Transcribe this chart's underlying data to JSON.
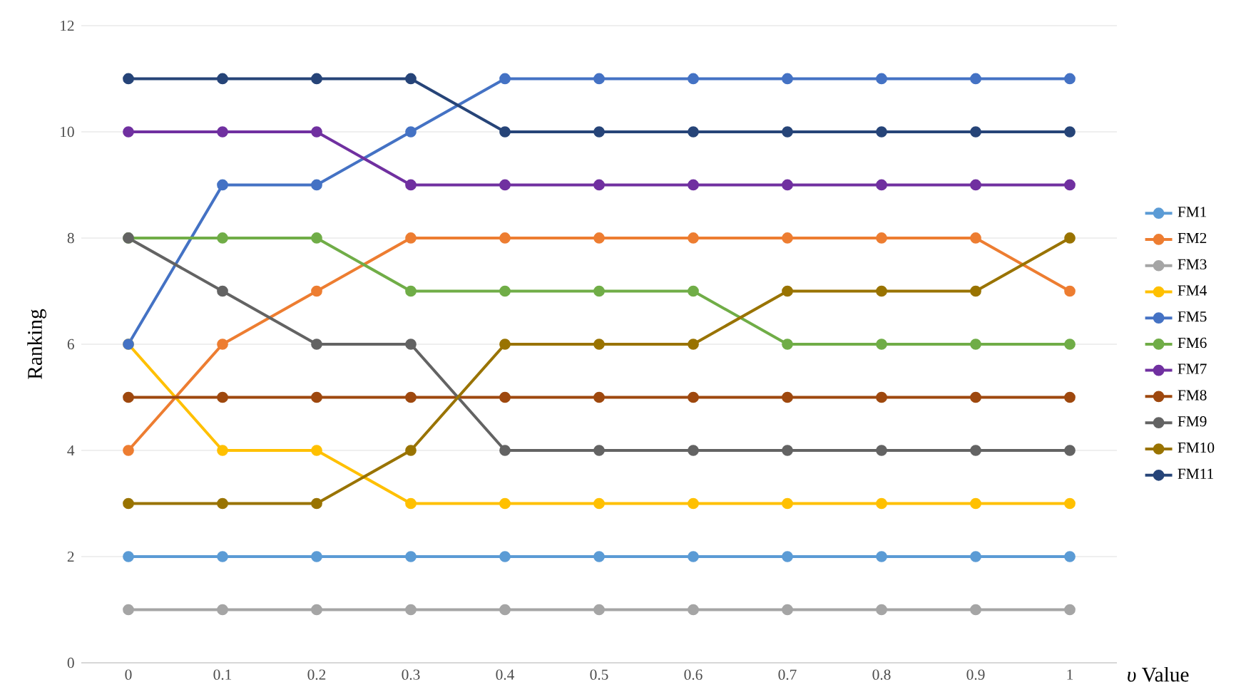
{
  "chart_data": {
    "type": "line",
    "xlabel": "*υ* Value",
    "ylabel": "Ranking",
    "categories": [
      "0",
      "0.1",
      "0.2",
      "0.3",
      "0.4",
      "0.5",
      "0.6",
      "0.7",
      "0.8",
      "0.9",
      "1"
    ],
    "ylim": [
      0,
      12
    ],
    "yticks": [
      0,
      2,
      4,
      6,
      8,
      10,
      12
    ],
    "grid": "y",
    "legend": "right",
    "marker": "circle",
    "line_style": "solid",
    "series": [
      {
        "name": "FM1",
        "color": "#5b9bd5",
        "values": [
          2,
          2,
          2,
          2,
          2,
          2,
          2,
          2,
          2,
          2,
          2
        ]
      },
      {
        "name": "FM2",
        "color": "#ed7d31",
        "values": [
          4,
          6,
          7,
          8,
          8,
          8,
          8,
          8,
          8,
          8,
          7
        ]
      },
      {
        "name": "FM3",
        "color": "#a5a5a5",
        "values": [
          1,
          1,
          1,
          1,
          1,
          1,
          1,
          1,
          1,
          1,
          1
        ]
      },
      {
        "name": "FM4",
        "color": "#ffc000",
        "values": [
          6,
          4,
          4,
          3,
          3,
          3,
          3,
          3,
          3,
          3,
          3
        ]
      },
      {
        "name": "FM5",
        "color": "#4472c4",
        "values": [
          6,
          9,
          9,
          10,
          11,
          11,
          11,
          11,
          11,
          11,
          11
        ]
      },
      {
        "name": "FM6",
        "color": "#70ad47",
        "values": [
          8,
          8,
          8,
          7,
          7,
          7,
          7,
          6,
          6,
          6,
          6
        ]
      },
      {
        "name": "FM7",
        "color": "#7030a0",
        "values": [
          10,
          10,
          10,
          9,
          9,
          9,
          9,
          9,
          9,
          9,
          9
        ]
      },
      {
        "name": "FM8",
        "color": "#9e480e",
        "values": [
          5,
          5,
          5,
          5,
          5,
          5,
          5,
          5,
          5,
          5,
          5
        ]
      },
      {
        "name": "FM9",
        "color": "#636363",
        "values": [
          8,
          7,
          6,
          6,
          4,
          4,
          4,
          4,
          4,
          4,
          4
        ]
      },
      {
        "name": "FM10",
        "color": "#997300",
        "values": [
          3,
          3,
          3,
          4,
          6,
          6,
          6,
          7,
          7,
          7,
          8
        ]
      },
      {
        "name": "FM11",
        "color": "#264478",
        "values": [
          11,
          11,
          11,
          11,
          10,
          10,
          10,
          10,
          10,
          10,
          10
        ]
      }
    ]
  }
}
